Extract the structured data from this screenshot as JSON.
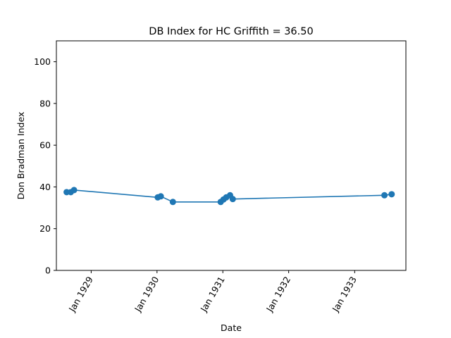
{
  "chart_data": {
    "type": "line",
    "title": "DB Index for HC Griffith = 36.50",
    "xlabel": "Date",
    "ylabel": "Don Bradman Index",
    "x_ticks": [
      {
        "label": "Jan 1929",
        "date": "1929-01-01"
      },
      {
        "label": "Jan 1930",
        "date": "1930-01-01"
      },
      {
        "label": "Jan 1931",
        "date": "1931-01-01"
      },
      {
        "label": "Jan 1932",
        "date": "1932-01-01"
      },
      {
        "label": "Jan 1933",
        "date": "1933-01-01"
      }
    ],
    "y_ticks": [
      0,
      20,
      40,
      60,
      80,
      100
    ],
    "xlim": [
      "1928-06-22",
      "1933-10-12"
    ],
    "ylim": [
      0,
      110
    ],
    "grid": false,
    "series": [
      {
        "color": "#1f77b4",
        "marker": "circle",
        "points": [
          {
            "x": "1928-08-18",
            "y": 37.5
          },
          {
            "x": "1928-09-10",
            "y": 37.5
          },
          {
            "x": "1928-09-28",
            "y": 38.5
          },
          {
            "x": "1930-01-05",
            "y": 35.0
          },
          {
            "x": "1930-01-22",
            "y": 35.5
          },
          {
            "x": "1930-03-30",
            "y": 32.8
          },
          {
            "x": "1930-12-20",
            "y": 32.8
          },
          {
            "x": "1931-01-05",
            "y": 34.0
          },
          {
            "x": "1931-01-20",
            "y": 35.0
          },
          {
            "x": "1931-02-10",
            "y": 36.0
          },
          {
            "x": "1931-02-25",
            "y": 34.2
          },
          {
            "x": "1933-06-15",
            "y": 36.0
          },
          {
            "x": "1933-07-25",
            "y": 36.5
          }
        ]
      }
    ]
  }
}
